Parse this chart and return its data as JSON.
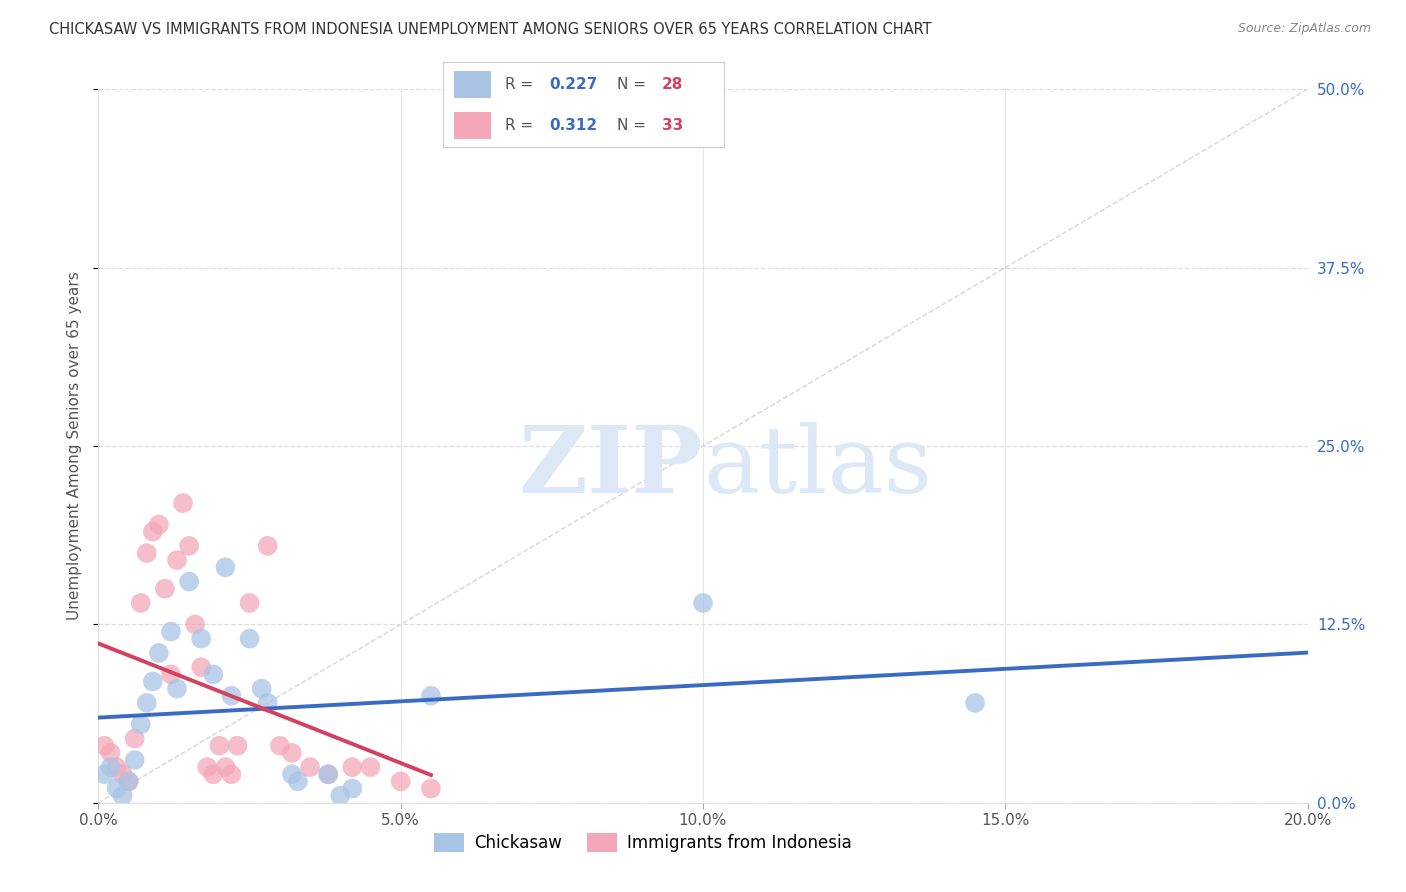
{
  "title": "CHICKASAW VS IMMIGRANTS FROM INDONESIA UNEMPLOYMENT AMONG SENIORS OVER 65 YEARS CORRELATION CHART",
  "source": "Source: ZipAtlas.com",
  "ylabel": "Unemployment Among Seniors over 65 years",
  "xlim": [
    0.0,
    0.2
  ],
  "ylim": [
    0.0,
    0.5
  ],
  "xtick_vals": [
    0.0,
    0.05,
    0.1,
    0.15,
    0.2
  ],
  "xtick_labels": [
    "0.0%",
    "5.0%",
    "10.0%",
    "15.0%",
    "20.0%"
  ],
  "ytick_vals": [
    0.0,
    0.125,
    0.25,
    0.375,
    0.5
  ],
  "ytick_labels_right": [
    "0.0%",
    "12.5%",
    "25.0%",
    "37.5%",
    "50.0%"
  ],
  "chickasaw_color": "#a8c4e5",
  "chickasaw_line_color": "#3a6bc4",
  "indonesia_color": "#f4a7b9",
  "indonesia_line_color": "#d44060",
  "diagonal_color": "#cccccc",
  "grid_color": "#dddddd",
  "background": "#ffffff",
  "watermark_color": "#dce8f5",
  "chickasaw_x": [
    0.001,
    0.002,
    0.003,
    0.004,
    0.005,
    0.006,
    0.007,
    0.008,
    0.009,
    0.01,
    0.012,
    0.013,
    0.015,
    0.017,
    0.019,
    0.021,
    0.022,
    0.025,
    0.027,
    0.028,
    0.032,
    0.033,
    0.038,
    0.04,
    0.042,
    0.055,
    0.1,
    0.145
  ],
  "chickasaw_y": [
    0.02,
    0.025,
    0.01,
    0.005,
    0.015,
    0.03,
    0.055,
    0.07,
    0.085,
    0.105,
    0.12,
    0.08,
    0.155,
    0.115,
    0.09,
    0.165,
    0.075,
    0.115,
    0.08,
    0.07,
    0.02,
    0.015,
    0.02,
    0.005,
    0.01,
    0.075,
    0.14,
    0.07
  ],
  "indonesia_x": [
    0.001,
    0.002,
    0.003,
    0.004,
    0.005,
    0.006,
    0.007,
    0.008,
    0.009,
    0.01,
    0.011,
    0.012,
    0.013,
    0.014,
    0.015,
    0.016,
    0.017,
    0.018,
    0.019,
    0.02,
    0.021,
    0.022,
    0.023,
    0.025,
    0.028,
    0.03,
    0.032,
    0.035,
    0.038,
    0.042,
    0.045,
    0.05,
    0.055
  ],
  "indonesia_y": [
    0.04,
    0.035,
    0.025,
    0.02,
    0.015,
    0.045,
    0.14,
    0.175,
    0.19,
    0.195,
    0.15,
    0.09,
    0.17,
    0.21,
    0.18,
    0.125,
    0.095,
    0.025,
    0.02,
    0.04,
    0.025,
    0.02,
    0.04,
    0.14,
    0.18,
    0.04,
    0.035,
    0.025,
    0.02,
    0.025,
    0.025,
    0.015,
    0.01
  ],
  "R_chickasaw": "0.227",
  "N_chickasaw": "28",
  "R_indonesia": "0.312",
  "N_indonesia": "33"
}
